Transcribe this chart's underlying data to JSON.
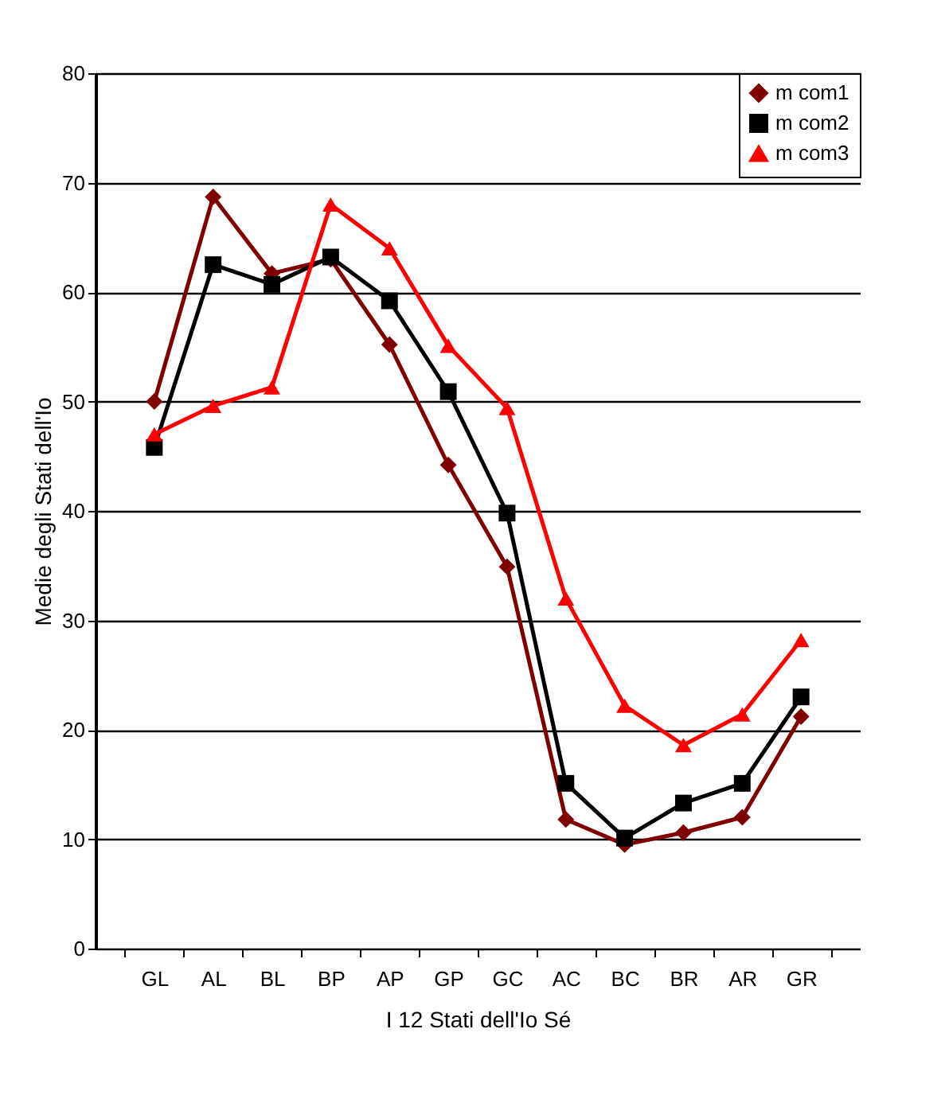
{
  "chart_data": {
    "type": "line",
    "xlabel": "I 12 Stati dell'Io Sé",
    "ylabel": "Medie degli Stati dell'Io",
    "categories": [
      "GL",
      "AL",
      "BL",
      "BP",
      "AP",
      "GP",
      "GC",
      "AC",
      "BC",
      "BR",
      "AR",
      "GR"
    ],
    "series": [
      {
        "name": "m com1",
        "color": "#800000",
        "marker": "diamond",
        "values": [
          50,
          68.7,
          61.7,
          63,
          55.2,
          44.2,
          34.9,
          11.8,
          9.5,
          10.6,
          12,
          21.2
        ]
      },
      {
        "name": "m com2",
        "color": "#000000",
        "marker": "square",
        "values": [
          45.8,
          62.5,
          60.7,
          63.2,
          59.2,
          50.9,
          39.8,
          15.1,
          10.1,
          13.3,
          15.1,
          23
        ]
      },
      {
        "name": "m com3",
        "color": "#ff0000",
        "marker": "triangle",
        "values": [
          47,
          49.6,
          51.3,
          68,
          64,
          55.1,
          49.4,
          32,
          22.2,
          18.6,
          21.4,
          28.2
        ]
      }
    ],
    "ylim": [
      0,
      80
    ],
    "yticks": [
      0,
      10,
      20,
      30,
      40,
      50,
      60,
      70,
      80
    ],
    "grid": "y",
    "legend": "top right",
    "line_style": "solid"
  }
}
